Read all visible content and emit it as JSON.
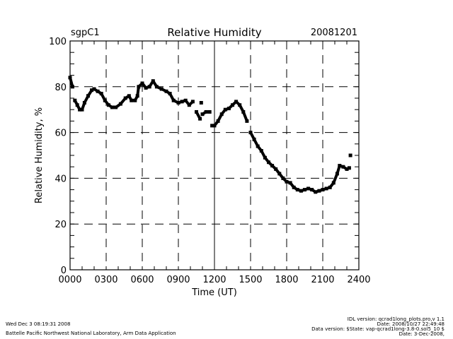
{
  "chart_data": {
    "type": "scatter",
    "title": "Relative Humidity",
    "site": "sgpC1",
    "date": "20081201",
    "xlabel": "Time (UT)",
    "ylabel": "Relative Humidity, %",
    "xlim": [
      0,
      24
    ],
    "ylim": [
      0,
      100
    ],
    "xticks": [
      0,
      3,
      6,
      9,
      12,
      15,
      18,
      21,
      24
    ],
    "xtick_labels": [
      "0000",
      "0300",
      "0600",
      "0900",
      "1200",
      "1500",
      "1800",
      "2100",
      "2400"
    ],
    "yticks": [
      0,
      20,
      40,
      60,
      80,
      100
    ],
    "ytick_labels": [
      "0",
      "20",
      "40",
      "60",
      "80",
      "100"
    ],
    "grid": true,
    "series": [
      {
        "name": "Relative Humidity",
        "x": [
          0,
          0.2,
          0.4,
          0.6,
          0.8,
          1.0,
          1.2,
          1.5,
          1.8,
          2.0,
          2.3,
          2.6,
          2.9,
          3.2,
          3.5,
          3.8,
          4.2,
          4.6,
          4.9,
          5.1,
          5.4,
          5.6,
          5.7,
          6.0,
          6.3,
          6.6,
          6.9,
          7.2,
          7.6,
          8.0,
          8.3,
          8.6,
          9.0,
          9.3,
          9.6,
          9.9,
          10.2,
          10.5,
          10.8,
          10.9,
          11.0,
          11.3,
          11.6,
          11.8,
          12.0,
          12.3,
          12.6,
          12.9,
          13.2,
          13.5,
          13.8,
          14.1,
          14.4,
          14.7,
          15.0,
          15.3,
          15.6,
          15.9,
          16.2,
          16.5,
          16.8,
          17.1,
          17.4,
          17.7,
          18.0,
          18.3,
          18.6,
          18.9,
          19.2,
          19.5,
          19.8,
          20.1,
          20.4,
          20.7,
          21.0,
          21.3,
          21.6,
          21.9,
          22.2,
          22.4,
          22.7,
          23.0,
          23.2,
          23.3
        ],
        "y": [
          84,
          80,
          74,
          72,
          70,
          70,
          73,
          76,
          78.5,
          79,
          78,
          77,
          74,
          72,
          71,
          71,
          72.5,
          75,
          76,
          74,
          74,
          76,
          80,
          81.5,
          79.5,
          80,
          82.5,
          80,
          79,
          78,
          77,
          74,
          73,
          73.5,
          74,
          72,
          73.5,
          69,
          66,
          73,
          68,
          69,
          69,
          63,
          63,
          65,
          68,
          70,
          70.5,
          72,
          73.5,
          72,
          69,
          65,
          60,
          57,
          54,
          52,
          49,
          47,
          45.5,
          44,
          42,
          40,
          38.5,
          38,
          36,
          35,
          34.5,
          35,
          35.5,
          35,
          34,
          34.5,
          35,
          35.5,
          36,
          38,
          42,
          45.5,
          45,
          44,
          44.5,
          50
        ]
      }
    ]
  },
  "footer": {
    "timestamp": "Wed Dec  3 08:19:31 2008",
    "organization": "Battelle Pacific Northwest National Laboratory, Arm Data Application",
    "idl_version": "IDL version: qcrad1long_plots.pro,v 1.1",
    "idl_date": "Date: 2008/10/27 22:49:48",
    "data_version": "Data version: $State: vap-qcrad1long-3.8-0.sol5_10 $",
    "data_date": "Date: 3-Dec-2008,"
  }
}
